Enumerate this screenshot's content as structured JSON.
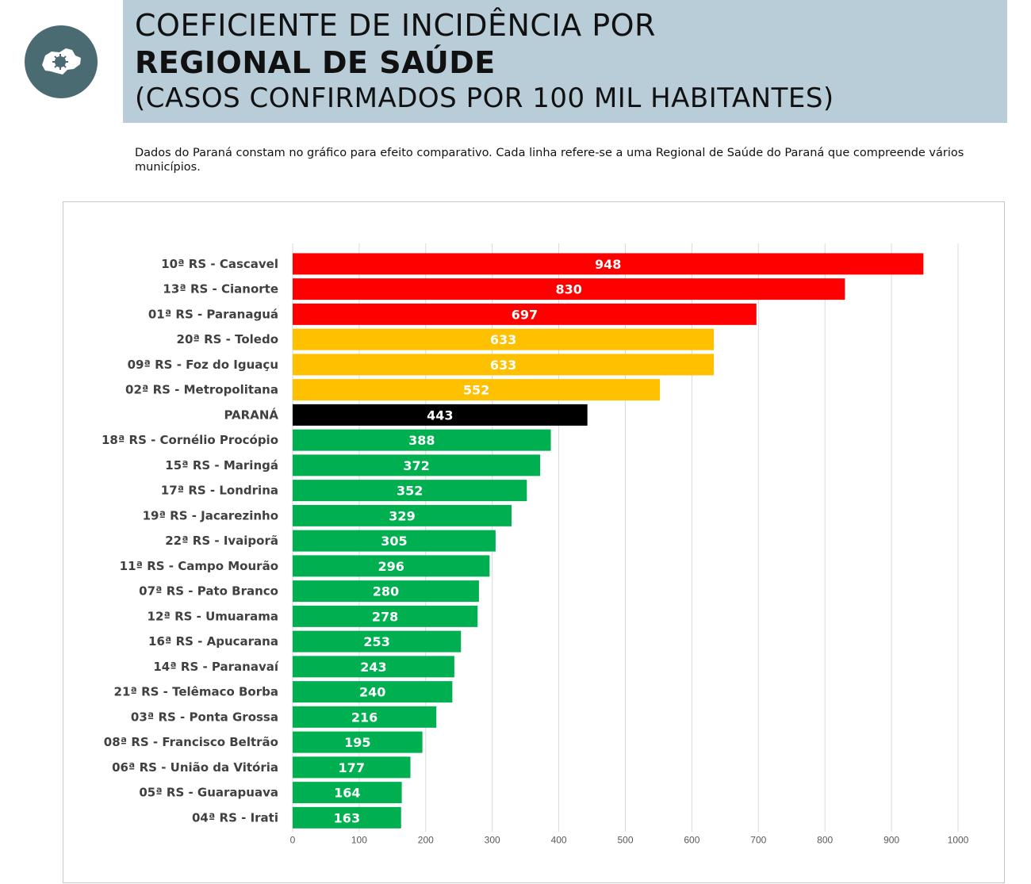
{
  "header": {
    "line1": "COEFICIENTE DE INCIDÊNCIA POR",
    "line2": "REGIONAL DE SAÚDE",
    "line3": "(CASOS CONFIRMADOS POR 100 MIL HABITANTES)"
  },
  "logo": {
    "icon": "parana-map-virus-icon",
    "bg_color": "#4a6b72"
  },
  "note": "Dados do Paraná constam no gráfico para efeito comparativo. Cada linha refere-se a uma Regional de Saúde do Paraná que compreende vários municípios.",
  "colors": {
    "red": "#ff0000",
    "yellow": "#ffc000",
    "black": "#000000",
    "green": "#00b050"
  },
  "chart_data": {
    "type": "bar",
    "orientation": "horizontal",
    "categories": [
      "10ª RS - Cascavel",
      "13ª RS - Cianorte",
      "01ª RS - Paranaguá",
      "20ª RS - Toledo",
      "09ª RS - Foz do Iguaçu",
      "02ª RS - Metropolitana",
      "PARANÁ",
      "18ª RS - Cornélio Procópio",
      "15ª RS - Maringá",
      "17ª RS - Londrina",
      "19ª RS - Jacarezinho",
      "22ª RS - Ivaiporã",
      "11ª RS - Campo Mourão",
      "07ª RS - Pato Branco",
      "12ª RS - Umuarama",
      "16ª RS - Apucarana",
      "14ª RS - Paranavaí",
      "21ª RS - Telêmaco Borba",
      "03ª RS - Ponta Grossa",
      "08ª RS - Francisco Beltrão",
      "06ª RS - União da Vitória",
      "05ª RS - Guarapuava",
      "04ª RS - Irati"
    ],
    "values": [
      948,
      830,
      697,
      633,
      633,
      552,
      443,
      388,
      372,
      352,
      329,
      305,
      296,
      280,
      278,
      253,
      243,
      240,
      216,
      195,
      177,
      164,
      163
    ],
    "labels": [
      "948",
      "830",
      "697",
      "633",
      "633",
      "552",
      "443",
      "388",
      "372",
      "352",
      "329",
      "305",
      "296",
      "280",
      "278",
      "253",
      "243",
      "240",
      "216",
      "195",
      "177",
      "164",
      "163"
    ],
    "bar_colors": [
      "red",
      "red",
      "red",
      "yellow",
      "yellow",
      "yellow",
      "black",
      "green",
      "green",
      "green",
      "green",
      "green",
      "green",
      "green",
      "green",
      "green",
      "green",
      "green",
      "green",
      "green",
      "green",
      "green",
      "green"
    ],
    "xlim": [
      0,
      1000
    ],
    "xticks": [
      "0",
      "100",
      "200",
      "300",
      "400",
      "500",
      "600",
      "700",
      "800",
      "900",
      "1000"
    ],
    "grid": true,
    "legend": "none",
    "title": "",
    "xlabel": "",
    "ylabel": ""
  }
}
